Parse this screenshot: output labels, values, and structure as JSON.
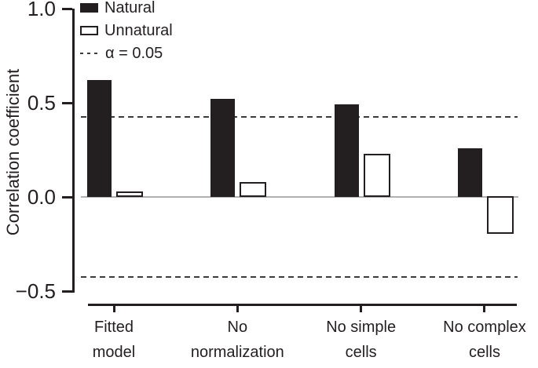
{
  "figure": {
    "background": "#ffffff"
  },
  "legend": {
    "items": [
      {
        "label": "Natural",
        "swatch": "filled-black-square"
      },
      {
        "label": "Unnatural",
        "swatch": "open-white-square"
      },
      {
        "label": "α = 0.05",
        "swatch": "dashed-line"
      }
    ]
  },
  "chart_data": {
    "type": "bar",
    "title": "",
    "xlabel": "",
    "ylabel": "Correlation coefficient",
    "categories": [
      "Fitted model",
      "No normalization",
      "No simple cells",
      "No complex cells"
    ],
    "categories_display": [
      "Fitted\nmodel",
      "No\nnormalization",
      "No simple\ncells",
      "No complex\ncells"
    ],
    "series": [
      {
        "name": "Natural",
        "style": "filled",
        "color": "#231f20",
        "values": [
          0.62,
          0.52,
          0.49,
          0.26
        ]
      },
      {
        "name": "Unnatural",
        "style": "open",
        "color": "#ffffff",
        "border": "#231f20",
        "values": [
          0.03,
          0.08,
          0.23,
          -0.2
        ]
      }
    ],
    "threshold_lines": {
      "label": "α = 0.05",
      "values": [
        0.425,
        -0.425
      ],
      "style": "dashed"
    },
    "ylim": [
      -0.5,
      1.0
    ],
    "yticks": [
      1.0,
      0.5,
      0.0,
      -0.5
    ],
    "ytick_labels": [
      "1.0",
      "0.5",
      "0.0",
      "−0.5"
    ],
    "grid": false,
    "zero_line": true,
    "legend_position": "top-left-inside"
  },
  "colors": {
    "bar_fill": "#231f20",
    "open_bar_fill": "#ffffff",
    "open_bar_border": "#231f20",
    "zero_line": "#b1b1b3",
    "dashed_line": "#3b3b3b",
    "axis": "#231f20",
    "text": "#231f20",
    "background": "#ffffff"
  }
}
